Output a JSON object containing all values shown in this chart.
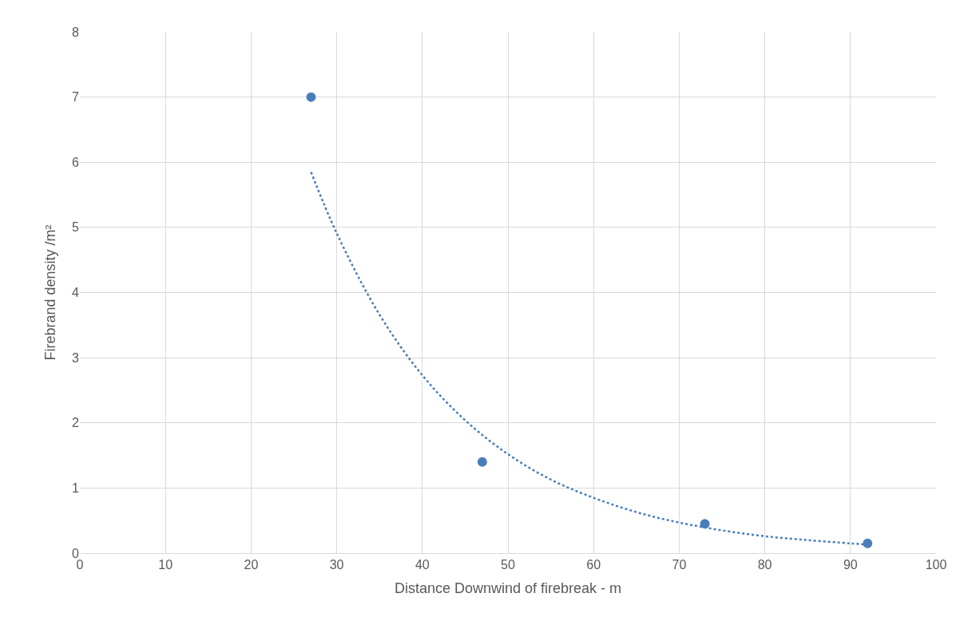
{
  "chart_data": {
    "type": "scatter",
    "xlabel": "Distance Downwind of firebreak - m",
    "ylabel": "Firebrand density /m²",
    "xlim": [
      0,
      100
    ],
    "xticks": [
      0,
      10,
      20,
      30,
      40,
      50,
      60,
      70,
      80,
      90,
      100
    ],
    "ylim": [
      0,
      8
    ],
    "yticks": [
      0,
      1,
      2,
      3,
      4,
      5,
      6,
      7,
      8
    ],
    "grid": true,
    "series": [
      {
        "color": "#4a7ebb",
        "marker": "circle",
        "x": [
          27,
          47,
          73,
          92
        ],
        "values": [
          7,
          1.4,
          0.45,
          0.15
        ]
      },
      {
        "type": "line",
        "color": "#4a7ebb",
        "line_style": "dotted",
        "x": [
          27,
          30,
          35,
          40,
          45,
          50,
          55,
          60,
          65,
          70,
          75,
          80,
          85,
          90,
          92
        ],
        "values": [
          5.85,
          4.91,
          3.66,
          2.73,
          2.04,
          1.52,
          1.13,
          0.85,
          0.63,
          0.47,
          0.35,
          0.26,
          0.2,
          0.15,
          0.13
        ]
      }
    ]
  }
}
